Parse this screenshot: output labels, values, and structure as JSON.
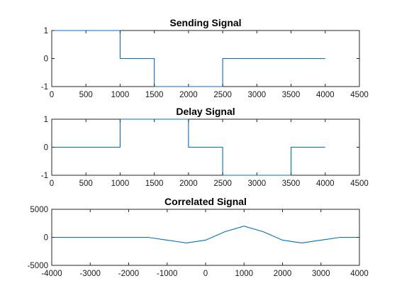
{
  "chart_data": [
    {
      "type": "line",
      "title": "Sending Signal",
      "xlim": [
        0,
        4500
      ],
      "ylim": [
        -1,
        1
      ],
      "xticks": [
        0,
        500,
        1000,
        1500,
        2000,
        2500,
        3000,
        3500,
        4000,
        4500
      ],
      "yticks": [
        -1,
        0,
        1
      ],
      "grid": false,
      "color": "#0072bd",
      "series": [
        {
          "x": [
            0,
            1000,
            1000,
            1500,
            1500,
            2500,
            2500,
            4000
          ],
          "y": [
            1,
            1,
            0,
            0,
            -1,
            -1,
            0,
            0
          ]
        }
      ]
    },
    {
      "type": "line",
      "title": "Delay Signal",
      "xlim": [
        0,
        4500
      ],
      "ylim": [
        -1,
        1
      ],
      "xticks": [
        0,
        500,
        1000,
        1500,
        2000,
        2500,
        3000,
        3500,
        4000,
        4500
      ],
      "yticks": [
        -1,
        0,
        1
      ],
      "grid": false,
      "color": "#0072bd",
      "series": [
        {
          "x": [
            0,
            1000,
            1000,
            2000,
            2000,
            2500,
            2500,
            3500,
            3500,
            4000
          ],
          "y": [
            0,
            0,
            1,
            1,
            0,
            0,
            -1,
            -1,
            0,
            0
          ]
        }
      ]
    },
    {
      "type": "line",
      "title": "Correlated Signal",
      "xlim": [
        -4000,
        4000
      ],
      "ylim": [
        -5000,
        5000
      ],
      "xticks": [
        -4000,
        -3000,
        -2000,
        -1000,
        0,
        1000,
        2000,
        3000,
        4000
      ],
      "yticks": [
        -5000,
        0,
        5000
      ],
      "grid": false,
      "color": "#0072bd",
      "series": [
        {
          "x": [
            -4000,
            -1500,
            -1000,
            -500,
            0,
            500,
            1000,
            1500,
            2000,
            2500,
            3000,
            3500,
            4000
          ],
          "y": [
            0,
            0,
            -500,
            -1000,
            -500,
            1000,
            2000,
            1000,
            -500,
            -1000,
            -500,
            0,
            0
          ]
        }
      ]
    }
  ]
}
